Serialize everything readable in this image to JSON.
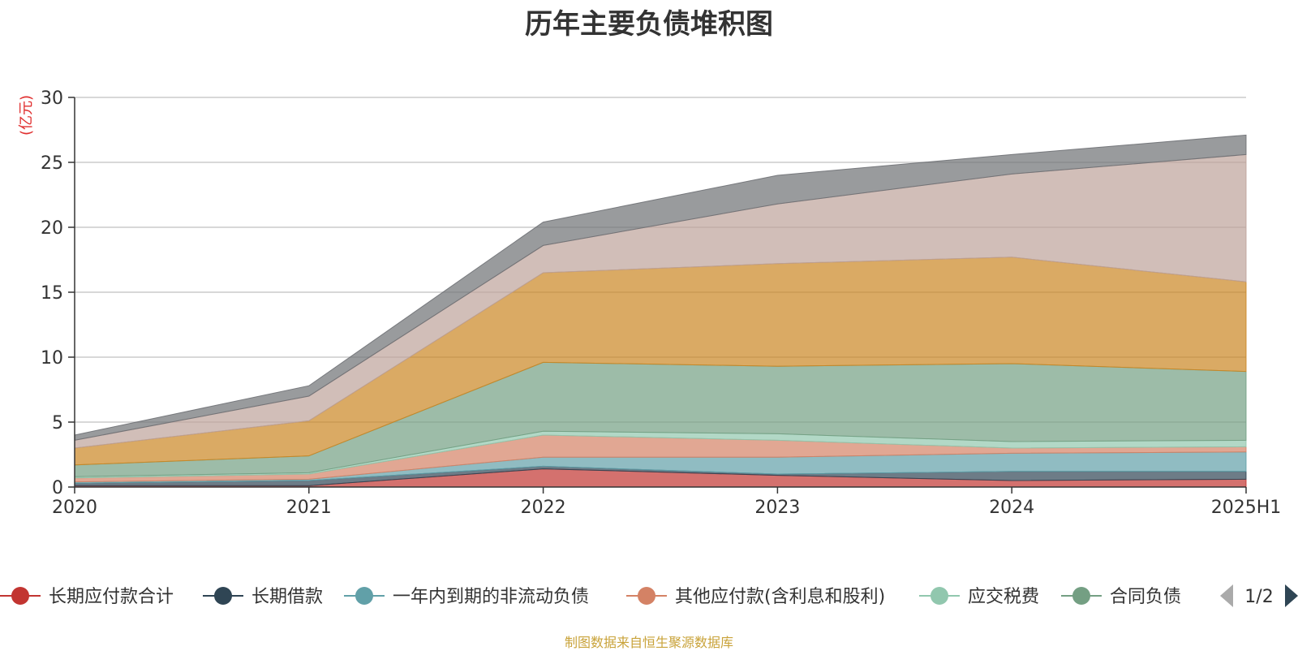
{
  "chart_data": {
    "type": "area",
    "stacked": true,
    "title": "历年主要负债堆积图",
    "ylabel": "(亿元)",
    "xlabel": "",
    "categories": [
      "2020",
      "2021",
      "2022",
      "2023",
      "2024",
      "2025H1"
    ],
    "ylim": [
      0,
      30
    ],
    "yticks": [
      0,
      5,
      10,
      15,
      20,
      25,
      30
    ],
    "grid": true,
    "legend_position": "bottom",
    "series": [
      {
        "name": "长期应付款合计",
        "color": "#c23531",
        "values": [
          0.1,
          0.1,
          1.4,
          0.9,
          0.5,
          0.6
        ]
      },
      {
        "name": "长期借款",
        "color": "#2f4554",
        "values": [
          0.2,
          0.4,
          0.2,
          0.1,
          0.7,
          0.6
        ]
      },
      {
        "name": "一年内到期的非流动负债",
        "color": "#61a0a8",
        "values": [
          0.1,
          0.1,
          0.7,
          1.3,
          1.4,
          1.5
        ]
      },
      {
        "name": "其他应付款(含利息和股利)",
        "color": "#d48265",
        "values": [
          0.3,
          0.4,
          1.7,
          1.3,
          0.4,
          0.4
        ]
      },
      {
        "name": "应交税费",
        "color": "#91c7ae",
        "values": [
          0.1,
          0.1,
          0.3,
          0.5,
          0.5,
          0.5
        ]
      },
      {
        "name": "合同负债",
        "color": "#749f83",
        "values": [
          0.9,
          1.3,
          5.3,
          5.2,
          6.0,
          5.3
        ]
      },
      {
        "name": "",
        "color": "#ca8622",
        "values": [
          1.3,
          2.7,
          6.9,
          7.9,
          8.2,
          6.9
        ]
      },
      {
        "name": "",
        "color": "#bda29a",
        "values": [
          0.6,
          1.9,
          2.1,
          4.6,
          6.4,
          9.8
        ]
      },
      {
        "name": "",
        "color": "#6e7074",
        "values": [
          0.4,
          0.8,
          1.8,
          2.2,
          1.5,
          1.5
        ]
      }
    ],
    "legend_page": "1/2"
  },
  "source_note": "制图数据来自恒生聚源数据库",
  "colors": {
    "axis": "#333333",
    "grid": "#cccccc",
    "unit": "#e03030",
    "pager_inactive": "#aaaaaa",
    "pager_active": "#2f4554"
  }
}
